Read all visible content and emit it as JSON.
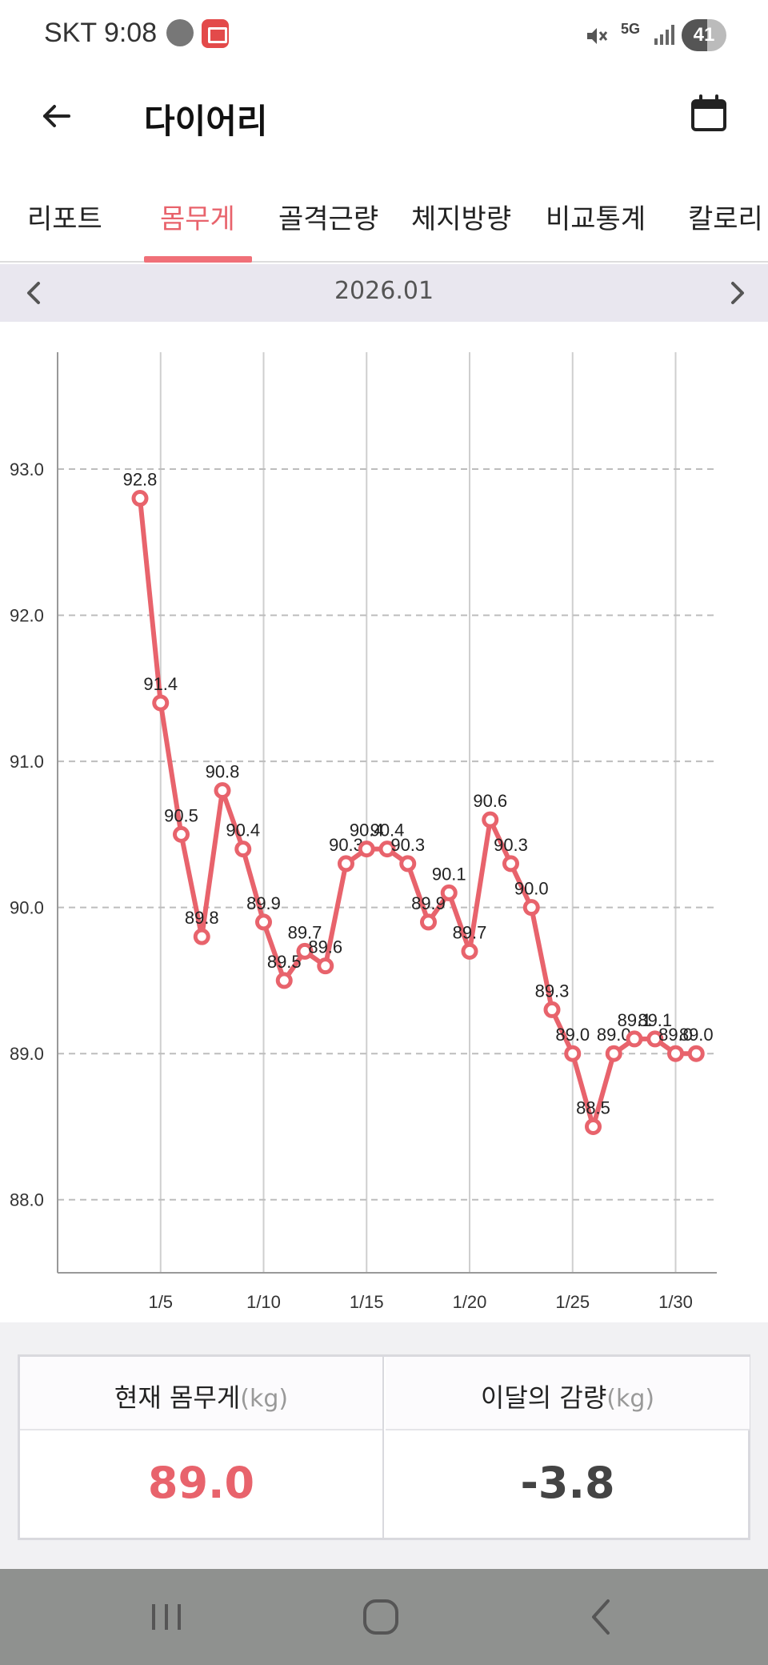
{
  "status_bar": {
    "carrier_time": "SKT 9:08",
    "network": "5G",
    "battery": "41",
    "icons": [
      "notification-face-icon",
      "home-app-icon",
      "mute-icon",
      "5g-icon",
      "signal-icon",
      "battery-icon"
    ]
  },
  "app_bar": {
    "title": "다이어리",
    "back_icon": "arrow-left-icon",
    "calendar_icon": "calendar-icon"
  },
  "tabs": [
    {
      "label": "리포트",
      "active": false
    },
    {
      "label": "몸무게",
      "active": true
    },
    {
      "label": "골격근량",
      "active": false
    },
    {
      "label": "체지방량",
      "active": false
    },
    {
      "label": "비교통계",
      "active": false
    },
    {
      "label": "칼로리",
      "active": false
    }
  ],
  "month_nav": {
    "label": "2026.01",
    "prev_icon": "chevron-left-icon",
    "next_icon": "chevron-right-icon"
  },
  "chart_data": {
    "type": "line",
    "x_ticks": [
      5,
      10,
      15,
      20,
      25,
      30
    ],
    "x_tick_labels": [
      "1/5",
      "1/10",
      "1/15",
      "1/20",
      "1/25",
      "1/30"
    ],
    "xlim": [
      0,
      32
    ],
    "y_ticks": [
      88.0,
      89.0,
      90.0,
      91.0,
      92.0,
      93.0
    ],
    "y_tick_labels": [
      "88.0",
      "89.0",
      "90.0",
      "91.0",
      "92.0",
      "93.0"
    ],
    "ylim": [
      87.5,
      93.8
    ],
    "grid": {
      "y": "dashed",
      "x": "solid"
    },
    "line_color": "#e8636c",
    "series": [
      {
        "x": [
          4,
          5,
          6,
          7,
          8,
          9,
          10,
          11,
          12,
          13,
          14,
          15,
          16,
          17,
          18,
          19,
          20,
          21,
          22,
          23,
          24,
          25,
          26,
          27,
          28,
          29,
          30,
          31
        ],
        "values": [
          92.8,
          91.4,
          90.5,
          89.8,
          90.8,
          90.4,
          89.9,
          89.5,
          89.7,
          89.6,
          90.3,
          90.4,
          90.4,
          90.3,
          89.9,
          90.1,
          89.7,
          90.6,
          90.3,
          90.0,
          89.3,
          89.0,
          88.5,
          89.0,
          89.1,
          89.1,
          89.0,
          89.0
        ],
        "labels": [
          "92.8",
          "91.4",
          "90.5",
          "89.8",
          "90.8",
          "90.4",
          "89.9",
          "89.5",
          "89.7",
          "89.6",
          "90.3",
          "90.4",
          "90.4",
          "90.3",
          "89.9",
          "90.1",
          "89.7",
          "90.6",
          "90.3",
          "90.0",
          "89.3",
          "89.0",
          "88.5",
          "89.0",
          "89.1",
          "89.1",
          "89.0",
          "89.0"
        ]
      }
    ]
  },
  "summary": {
    "current_label": "현재 몸무게",
    "current_unit": "(kg)",
    "current_value": "89.0",
    "loss_label": "이달의 감량",
    "loss_unit": "(kg)",
    "loss_value": "-3.8"
  },
  "nav_bar": {
    "icons": [
      "recent-apps-icon",
      "home-icon",
      "back-icon"
    ]
  }
}
